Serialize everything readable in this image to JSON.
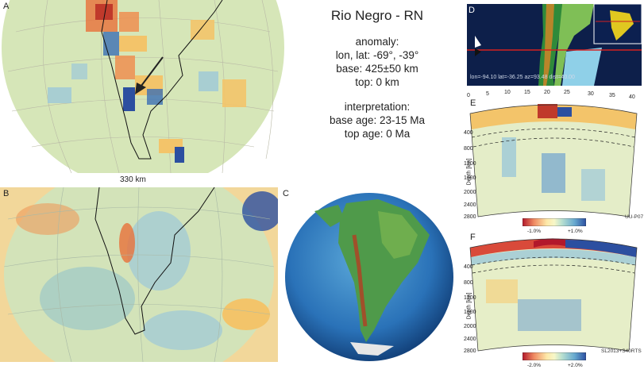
{
  "title": "Rio Negro - RN",
  "anomaly": {
    "heading": "anomaly:",
    "lonlat": "lon, lat: -69°, -39°",
    "base": "base: 425±50 km",
    "top": "top: 0 km"
  },
  "interpretation": {
    "heading": "interpretation:",
    "base_age": "base age: 23-15 Ma",
    "top_age": "top age: 0 Ma"
  },
  "panels": {
    "a": "A",
    "b": "B",
    "c": "C",
    "d": "D",
    "e": "E",
    "f": "F"
  },
  "map_a": {
    "depth_label": "330 km"
  },
  "section_d": {
    "readout": "lon=-94.10 lat=-36.25 az=93.48 dist=40.00"
  },
  "section_e": {
    "x_ticks": [
      "0",
      "5",
      "10",
      "15",
      "20",
      "25",
      "30",
      "35",
      "40"
    ],
    "depth_ticks": [
      "0",
      "400",
      "800",
      "1200",
      "1600",
      "2000",
      "2400",
      "2800"
    ],
    "depth_axis": "Depth [km]",
    "cbar_min": "-1.0%",
    "cbar_max": "+1.0%",
    "model": "UU-P07"
  },
  "section_f": {
    "depth_ticks": [
      "0",
      "400",
      "800",
      "1200",
      "1600",
      "2000",
      "2400",
      "2800"
    ],
    "depth_axis": "Depth [km]",
    "cbar_min": "-2.0%",
    "cbar_max": "+2.0%",
    "model": "SL2013+S40RTS"
  },
  "colors": {
    "slow": "#c0392b",
    "neutral": "#f5f0c8",
    "fast": "#2c4fa0",
    "ocean_deep": "#1f5f9e",
    "land_green": "#4f9a4a"
  }
}
